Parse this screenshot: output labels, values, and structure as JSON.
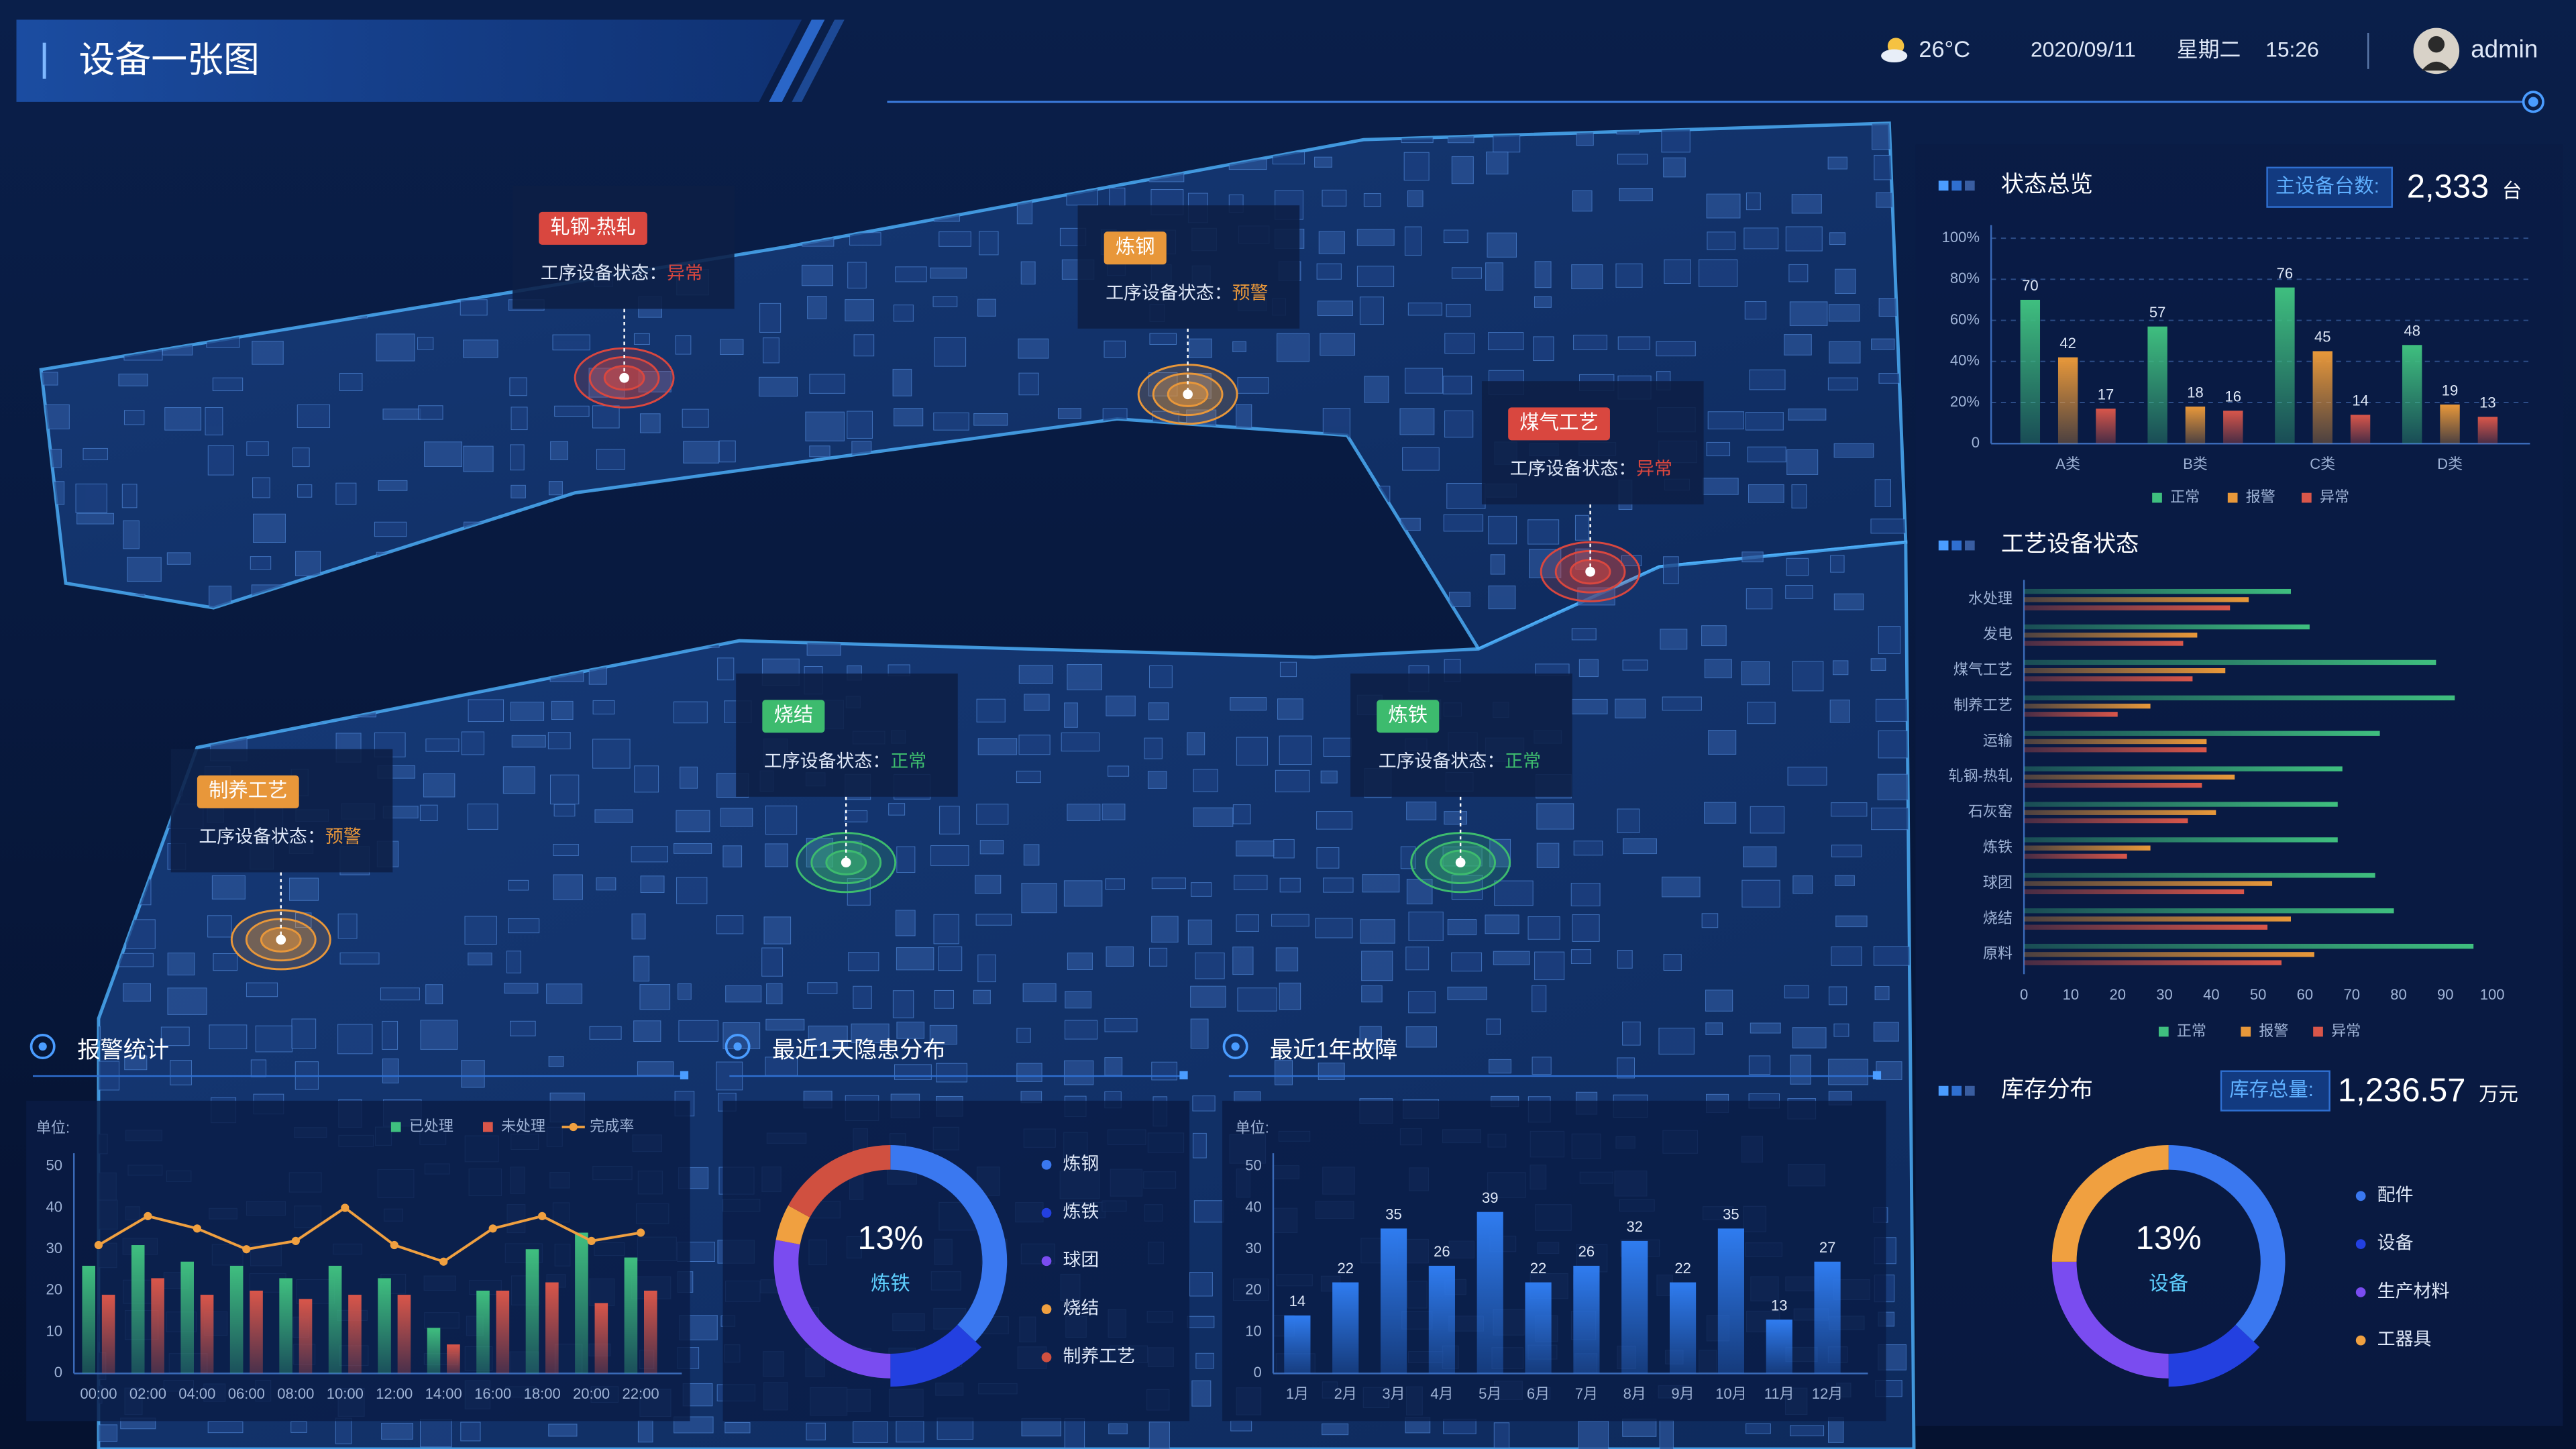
{
  "header": {
    "title": "设备一张图",
    "temperature": "26°C",
    "date": "2020/09/11",
    "weekday": "星期二",
    "time": "15:26",
    "user": "admin"
  },
  "markers": [
    {
      "name": "轧钢-热轧",
      "label": "工序设备状态：",
      "status": "异常",
      "color": "#d9473f"
    },
    {
      "name": "炼钢",
      "label": "工序设备状态：",
      "status": "预警",
      "color": "#e8973a"
    },
    {
      "name": "煤气工艺",
      "label": "工序设备状态：",
      "status": "异常",
      "color": "#d9473f"
    },
    {
      "name": "制养工艺",
      "label": "工序设备状态：",
      "status": "预警",
      "color": "#e8973a"
    },
    {
      "name": "烧结",
      "label": "工序设备状态：",
      "status": "正常",
      "color": "#3dbb6e"
    },
    {
      "name": "炼铁",
      "label": "工序设备状态：",
      "status": "正常",
      "color": "#3dbb6e"
    }
  ],
  "chart_data": [
    {
      "type": "bar",
      "title": "状态总览",
      "total_label": "主设备台数:",
      "total": "2,333",
      "total_unit": "台",
      "categories": [
        "A类",
        "B类",
        "C类",
        "D类"
      ],
      "series": [
        {
          "name": "正常",
          "color": "#3fbf7f",
          "values": [
            70,
            57,
            76,
            48
          ]
        },
        {
          "name": "报警",
          "color": "#e8983a",
          "values": [
            42,
            18,
            45,
            19
          ]
        },
        {
          "name": "异常",
          "color": "#d9564a",
          "values": [
            17,
            16,
            14,
            13
          ]
        }
      ],
      "ylim": [
        0,
        100
      ],
      "yticks": [
        0,
        {
          "value": 20,
          "label": "20%"
        },
        {
          "value": 40,
          "label": "40%"
        },
        {
          "value": 60,
          "label": "60%"
        },
        {
          "value": 80,
          "label": "80%"
        },
        {
          "value": 100,
          "label": "100%"
        }
      ],
      "grid": true,
      "show_values": true
    },
    {
      "type": "hbar",
      "title": "工艺设备状态",
      "categories": [
        "水处理",
        "发电",
        "煤气工艺",
        "制养工艺",
        "运输",
        "轧钢-热轧",
        "石灰窑",
        "炼铁",
        "球团",
        "烧结",
        "原料"
      ],
      "series": [
        {
          "name": "正常",
          "color": "#3fbf7f",
          "values": [
            57,
            61,
            88,
            92,
            76,
            68,
            67,
            67,
            75,
            79,
            96
          ]
        },
        {
          "name": "报警",
          "color": "#e8983a",
          "values": [
            48,
            37,
            43,
            27,
            39,
            45,
            41,
            27,
            53,
            57,
            62
          ]
        },
        {
          "name": "异常",
          "color": "#d9564a",
          "values": [
            44,
            34,
            36,
            20,
            39,
            38,
            35,
            22,
            47,
            52,
            55
          ]
        }
      ],
      "xlim": [
        0,
        100
      ],
      "xticks": [
        0,
        10,
        20,
        30,
        40,
        50,
        60,
        70,
        80,
        90,
        100
      ]
    },
    {
      "type": "bar_line",
      "title": "报警统计",
      "unit_label": "单位:",
      "categories": [
        "00:00",
        "02:00",
        "04:00",
        "06:00",
        "08:00",
        "10:00",
        "12:00",
        "14:00",
        "16:00",
        "18:00",
        "20:00",
        "22:00"
      ],
      "series": [
        {
          "name": "已处理",
          "color": "#3fbf7f",
          "values": [
            26,
            31,
            27,
            26,
            23,
            26,
            23,
            11,
            20,
            30,
            34,
            28
          ]
        },
        {
          "name": "未处理",
          "color": "#d9564a",
          "values": [
            19,
            23,
            19,
            20,
            18,
            19,
            19,
            7,
            20,
            22,
            17,
            20
          ]
        },
        {
          "name": "完成率",
          "type": "line",
          "color": "#f0a040",
          "values": [
            31,
            38,
            35,
            30,
            32,
            40,
            31,
            27,
            35,
            38,
            32,
            34
          ]
        }
      ],
      "ylim": [
        0,
        50
      ],
      "yticks": [
        0,
        10,
        20,
        30,
        40,
        50
      ]
    },
    {
      "type": "donut",
      "title": "最近1天隐患分布",
      "categories": [
        "炼钢",
        "炼铁",
        "球团",
        "烧结",
        "制养工艺"
      ],
      "values": [
        37,
        13,
        28,
        5,
        17
      ],
      "colors": [
        "#3a78f0",
        "#2340e0",
        "#7a4cf0",
        "#f0a040",
        "#d05040"
      ],
      "highlight": 1,
      "center_value": "13%",
      "center_label": "炼铁"
    },
    {
      "type": "bar",
      "title": "最近1年故障",
      "unit_label": "单位:",
      "categories": [
        "1月",
        "2月",
        "3月",
        "4月",
        "5月",
        "6月",
        "7月",
        "8月",
        "9月",
        "10月",
        "11月",
        "12月"
      ],
      "values": [
        14,
        22,
        35,
        26,
        39,
        22,
        26,
        32,
        22,
        35,
        13,
        27
      ],
      "color": "#2f7cf0",
      "ylim": [
        0,
        50
      ],
      "yticks": [
        0,
        10,
        20,
        30,
        40,
        50
      ],
      "show_values": true
    },
    {
      "type": "donut",
      "title": "库存分布",
      "total_label": "库存总量:",
      "total": "1,236.57",
      "total_unit": "万元",
      "categories": [
        "配件",
        "设备",
        "生产材料",
        "工器具"
      ],
      "values": [
        37,
        13,
        25,
        25
      ],
      "colors": [
        "#3a78f0",
        "#2340e0",
        "#7a4cf0",
        "#f0a040"
      ],
      "highlight": 1,
      "center_value": "13%",
      "center_label": "设备"
    }
  ]
}
